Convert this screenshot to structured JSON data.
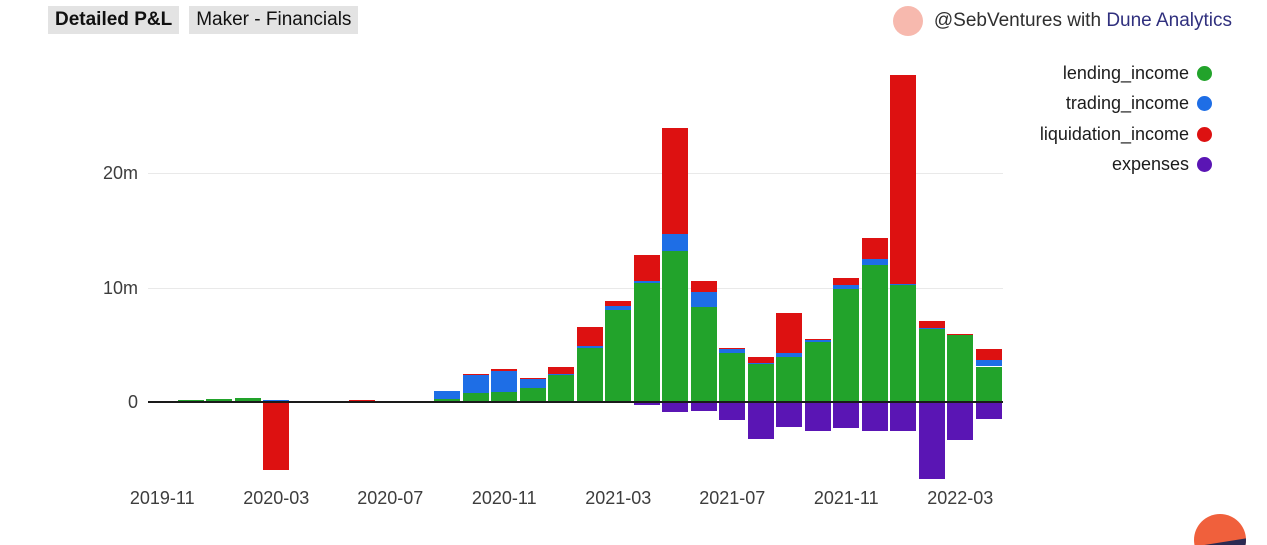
{
  "header": {
    "title_badge": "Detailed P&L",
    "subtitle_badge": "Maker - Financials",
    "author": "@SebVentures",
    "with_text": " with ",
    "platform": "Dune Analytics",
    "platform_color": "#30307e",
    "avatar_color": "#f7b9ae"
  },
  "legend": [
    {
      "label": "lending_income",
      "color": "#22a32b"
    },
    {
      "label": "trading_income",
      "color": "#1e6ee6"
    },
    {
      "label": "liquidation_income",
      "color": "#dd1111"
    },
    {
      "label": "expenses",
      "color": "#5a15b4"
    }
  ],
  "axes": {
    "y_ticks": [
      {
        "label": "20m",
        "value": 20
      },
      {
        "label": "10m",
        "value": 10
      },
      {
        "label": "0",
        "value": 0
      }
    ],
    "x_ticks": [
      "2019-11",
      "2020-03",
      "2020-07",
      "2020-11",
      "2021-03",
      "2021-07",
      "2021-11",
      "2022-03"
    ],
    "x_tick_every": 4
  },
  "chart_data": {
    "type": "bar",
    "stacked": true,
    "unit": "millions (m)",
    "title": "Detailed P&L — Maker - Financials",
    "ylim": [
      -8,
      30
    ],
    "grid_values": [
      10,
      20
    ],
    "x": [
      "2019-11",
      "2019-12",
      "2020-01",
      "2020-02",
      "2020-03",
      "2020-04",
      "2020-05",
      "2020-06",
      "2020-07",
      "2020-08",
      "2020-09",
      "2020-10",
      "2020-11",
      "2020-12",
      "2021-01",
      "2021-02",
      "2021-03",
      "2021-04",
      "2021-05",
      "2021-06",
      "2021-07",
      "2021-08",
      "2021-09",
      "2021-10",
      "2021-11",
      "2021-12",
      "2022-01",
      "2022-02",
      "2022-03",
      "2022-04"
    ],
    "series": [
      {
        "name": "lending_income",
        "color": "#22a32b",
        "values": [
          0.05,
          0.15,
          0.25,
          0.38,
          0.15,
          0.03,
          0.03,
          0.05,
          0.1,
          0.05,
          0.3,
          0.8,
          0.9,
          1.2,
          2.35,
          4.7,
          8.0,
          10.4,
          13.2,
          8.3,
          4.3,
          3.3,
          3.9,
          5.2,
          9.9,
          12.0,
          10.2,
          6.4,
          5.85,
          3.1
        ]
      },
      {
        "name": "trading_income",
        "color": "#1e6ee6",
        "values": [
          0,
          0,
          0.02,
          0.02,
          0.05,
          0,
          0,
          0,
          0.02,
          0,
          0.65,
          1.6,
          1.85,
          0.85,
          0.1,
          0.15,
          0.4,
          0.15,
          1.45,
          1.3,
          0.4,
          0.1,
          0.4,
          0.25,
          0.3,
          0.45,
          0.1,
          0.05,
          0.05,
          0.6
        ]
      },
      {
        "name": "liquidation_income",
        "color": "#dd1111",
        "values": [
          0,
          0.02,
          0.02,
          0.02,
          -5.9,
          0,
          0,
          0.1,
          0.02,
          0,
          0.02,
          0.05,
          0.1,
          0.05,
          0.6,
          1.7,
          0.4,
          2.3,
          9.3,
          1.0,
          0.05,
          0.5,
          3.5,
          0.05,
          0.6,
          1.9,
          18.3,
          0.6,
          0.05,
          0.9
        ]
      },
      {
        "name": "expenses",
        "color": "#5a15b4",
        "values": [
          0,
          0,
          0,
          0,
          0,
          0,
          0,
          0,
          0,
          0,
          0,
          0,
          0,
          0,
          0,
          -0.05,
          -0.1,
          -0.3,
          -0.85,
          -0.8,
          -1.6,
          -3.2,
          -2.2,
          -2.5,
          -2.3,
          -2.5,
          -2.5,
          -6.7,
          -3.35,
          -1.45
        ]
      }
    ],
    "legend_position": "top-right",
    "grid": true
  },
  "logo": {
    "name": "dune-logo",
    "orange": "#f0603c",
    "navy": "#2b2a52"
  }
}
